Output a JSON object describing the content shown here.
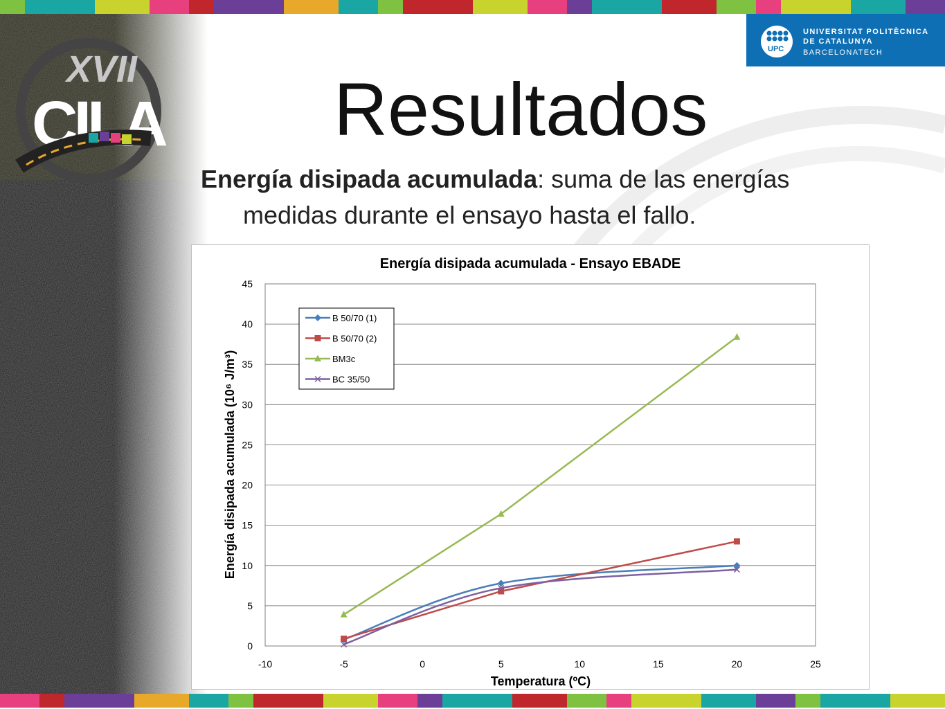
{
  "header": {
    "stripe_colors": [
      "#7fc242",
      "#1aa7a3",
      "#c8d32e",
      "#e8407f",
      "#c0272d",
      "#6b3f98",
      "#e8a92a",
      "#1aa7a3",
      "#7fc242",
      "#c0272d",
      "#c8d32e",
      "#e8407f",
      "#6b3f98",
      "#1aa7a3",
      "#c0272d",
      "#7fc242",
      "#e8407f",
      "#c8d32e",
      "#1aa7a3",
      "#6b3f98"
    ],
    "conference_logo_text": "XVII CILA",
    "university": {
      "line1": "UNIVERSITAT POLITÈCNICA",
      "line2": "DE CATALUNYA",
      "line3": "BARCELONATECH",
      "mark_text": "UPC",
      "color": "#0f6fb4"
    }
  },
  "slide": {
    "title": "Resultados",
    "intro_term": "Energía disipada acumulada",
    "intro_rest": ": suma de las energías",
    "intro_line2": "medidas durante el ensayo hasta el fallo."
  },
  "chart_data": {
    "type": "line",
    "title": "Energía disipada acumulada - Ensayo EBADE",
    "xlabel": "Temperatura (ºC)",
    "ylabel": "Energía disipada acumulada (10⁶ J/m³)",
    "xlim": [
      -10,
      25
    ],
    "ylim": [
      0,
      45
    ],
    "xticks": [
      -10,
      -5,
      0,
      5,
      10,
      15,
      20,
      25
    ],
    "yticks": [
      0,
      5,
      10,
      15,
      20,
      25,
      30,
      35,
      40,
      45
    ],
    "grid": "horizontal",
    "legend_position": "top-left",
    "x": [
      -5,
      5,
      20
    ],
    "series": [
      {
        "name": "B 50/70 (1)",
        "values": [
          0.8,
          7.8,
          10.0
        ],
        "color": "#4a7ebb",
        "marker": "diamond",
        "smooth": true
      },
      {
        "name": "B 50/70 (2)",
        "values": [
          0.9,
          6.8,
          13.0
        ],
        "color": "#be4b48",
        "marker": "square",
        "smooth": false
      },
      {
        "name": "BM3c",
        "values": [
          3.9,
          16.4,
          38.4
        ],
        "color": "#98b954",
        "marker": "triangle",
        "smooth": false
      },
      {
        "name": "BC 35/50",
        "values": [
          0.2,
          7.2,
          9.5
        ],
        "color": "#7d60a0",
        "marker": "x",
        "smooth": true
      }
    ]
  }
}
